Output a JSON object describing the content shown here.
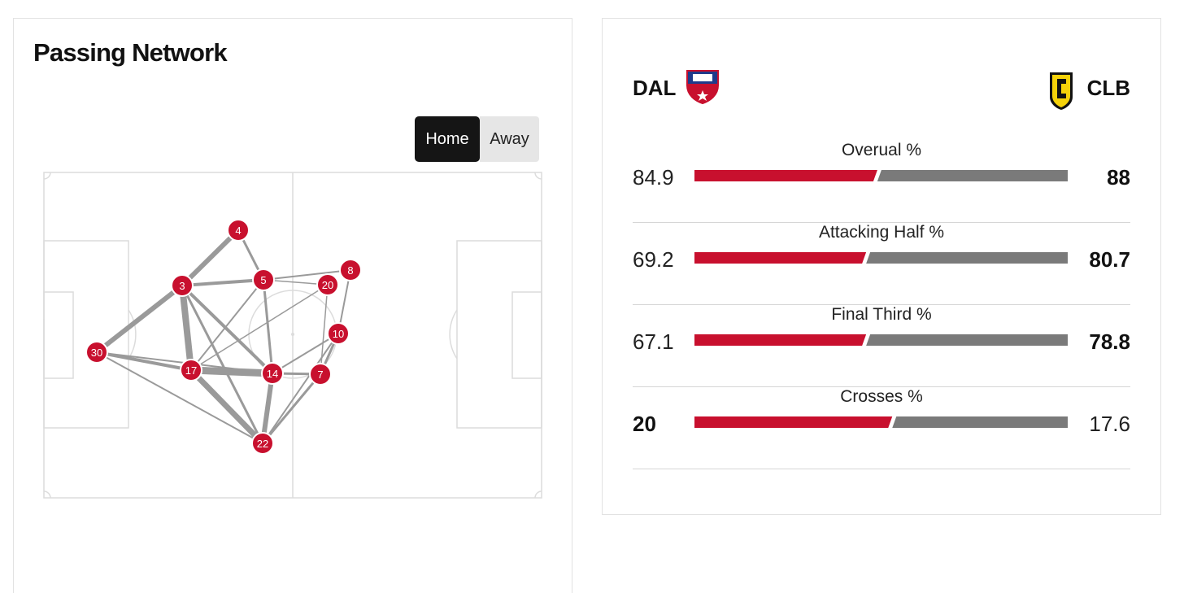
{
  "passing_network": {
    "title": "Passing Network",
    "toggle": {
      "home_label": "Home",
      "away_label": "Away",
      "selected": "Home"
    },
    "players": [
      {
        "number": "4"
      },
      {
        "number": "3"
      },
      {
        "number": "5"
      },
      {
        "number": "8"
      },
      {
        "number": "20"
      },
      {
        "number": "10"
      },
      {
        "number": "30"
      },
      {
        "number": "17"
      },
      {
        "number": "14"
      },
      {
        "number": "7"
      },
      {
        "number": "22"
      }
    ],
    "colors": {
      "node": "#c8102e",
      "link": "#9a9a9a",
      "pitch_lines": "#dcdcdc"
    }
  },
  "comparison": {
    "home": {
      "abbr": "DAL",
      "crest_icon": "fc-dallas-crest-icon",
      "color": "#c8102e"
    },
    "away": {
      "abbr": "CLB",
      "crest_icon": "columbus-crew-crest-icon",
      "color": "#7a7a7a"
    },
    "stats": [
      {
        "label": "Overual %",
        "home": "84.9",
        "away": "88",
        "home_share": 0.49,
        "leader": "away"
      },
      {
        "label": "Attacking Half %",
        "home": "69.2",
        "away": "80.7",
        "home_share": 0.46,
        "leader": "away"
      },
      {
        "label": "Final Third %",
        "home": "67.1",
        "away": "78.8",
        "home_share": 0.46,
        "leader": "away"
      },
      {
        "label": "Crosses %",
        "home": "20",
        "away": "17.6",
        "home_share": 0.53,
        "leader": "home"
      }
    ]
  }
}
